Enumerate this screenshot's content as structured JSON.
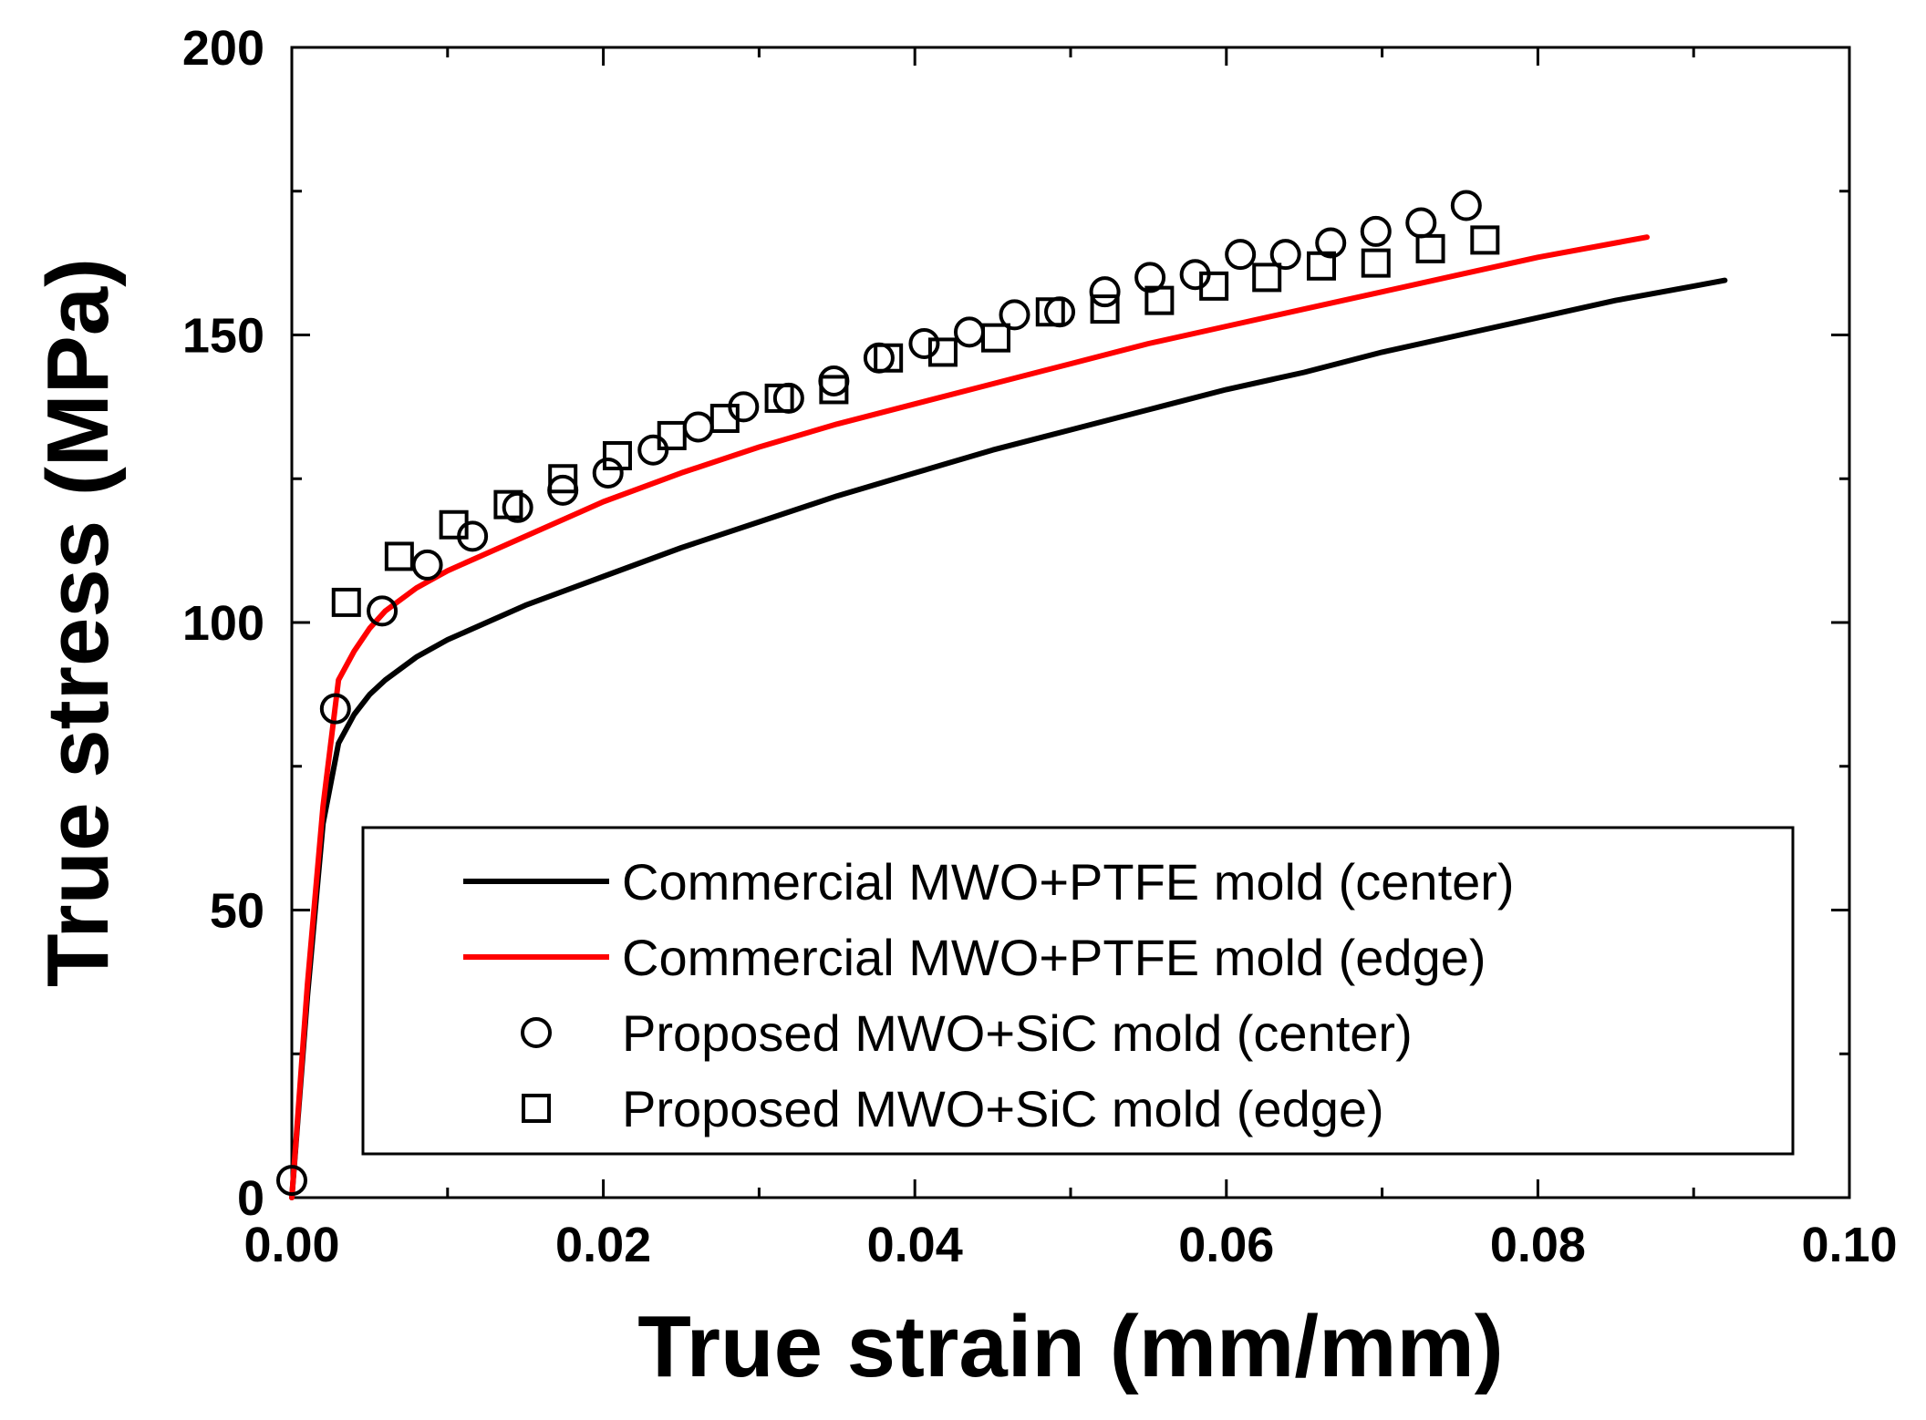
{
  "chart_data": {
    "type": "line",
    "title": "",
    "xlabel": "True strain (mm/mm)",
    "ylabel": "True stress (MPa)",
    "xlim": [
      0,
      0.1
    ],
    "ylim": [
      0,
      200
    ],
    "xticks": [
      "0.00",
      "0.02",
      "0.04",
      "0.06",
      "0.08",
      "0.10"
    ],
    "yticks": [
      "0",
      "50",
      "100",
      "150",
      "200"
    ],
    "grid": false,
    "legend_position": "bottom-right",
    "series": [
      {
        "name": "Commercial MWO+PTFE mold (center)",
        "style": "line",
        "color": "#000000",
        "x": [
          0,
          0.001,
          0.002,
          0.003,
          0.004,
          0.005,
          0.006,
          0.008,
          0.01,
          0.015,
          0.02,
          0.025,
          0.03,
          0.035,
          0.04,
          0.045,
          0.05,
          0.055,
          0.06,
          0.065,
          0.07,
          0.075,
          0.08,
          0.085,
          0.09,
          0.092
        ],
        "y": [
          0,
          35,
          65,
          79,
          84,
          87.5,
          90,
          94,
          97,
          103,
          108,
          113,
          117.5,
          122,
          126,
          130,
          133.5,
          137,
          140.5,
          143.5,
          147,
          150,
          153,
          156,
          158.5,
          159.5
        ]
      },
      {
        "name": "Commercial MWO+PTFE mold (edge)",
        "style": "line",
        "color": "#ff0000",
        "x": [
          0,
          0.001,
          0.002,
          0.003,
          0.004,
          0.005,
          0.006,
          0.008,
          0.01,
          0.015,
          0.02,
          0.025,
          0.03,
          0.035,
          0.04,
          0.045,
          0.05,
          0.055,
          0.06,
          0.065,
          0.07,
          0.075,
          0.08,
          0.085,
          0.087
        ],
        "y": [
          0,
          37,
          68,
          90,
          95,
          99,
          102,
          106,
          109,
          115,
          121,
          126,
          130.5,
          134.5,
          138,
          141.5,
          145,
          148.5,
          151.5,
          154.5,
          157.5,
          160.5,
          163.5,
          166,
          167
        ]
      },
      {
        "name": "Proposed MWO+SiC mold (center)",
        "style": "marker",
        "marker": "circle",
        "color": "#000000",
        "x": [
          0,
          0.0028,
          0.0058,
          0.0087,
          0.0116,
          0.0145,
          0.0174,
          0.0203,
          0.0232,
          0.0261,
          0.029,
          0.0319,
          0.0348,
          0.0377,
          0.0406,
          0.0435,
          0.0464,
          0.0493,
          0.0522,
          0.0551,
          0.058,
          0.0609,
          0.0638,
          0.0667,
          0.0696,
          0.0725,
          0.0754
        ],
        "y": [
          3,
          85,
          102,
          110,
          115,
          120,
          123,
          126,
          130,
          134,
          137.5,
          139,
          142,
          146,
          148.5,
          150.5,
          153.5,
          154,
          157.5,
          160,
          160.5,
          164,
          164,
          166,
          168,
          169.5,
          172.5
        ]
      },
      {
        "name": "Proposed MWO+SiC mold (edge)",
        "style": "marker",
        "marker": "square",
        "color": "#000000",
        "x": [
          0.0035,
          0.0069,
          0.0104,
          0.0139,
          0.0174,
          0.0209,
          0.0244,
          0.0278,
          0.0313,
          0.0348,
          0.0383,
          0.0418,
          0.0452,
          0.0487,
          0.0522,
          0.0557,
          0.0592,
          0.0626,
          0.0661,
          0.0696,
          0.0731,
          0.0766
        ],
        "y": [
          103.5,
          111.5,
          117,
          120.5,
          125,
          129,
          132.5,
          135.5,
          139,
          140.5,
          146,
          147,
          149.5,
          154,
          154.5,
          156,
          158.5,
          160,
          162,
          162.5,
          165,
          166.5
        ]
      }
    ]
  }
}
